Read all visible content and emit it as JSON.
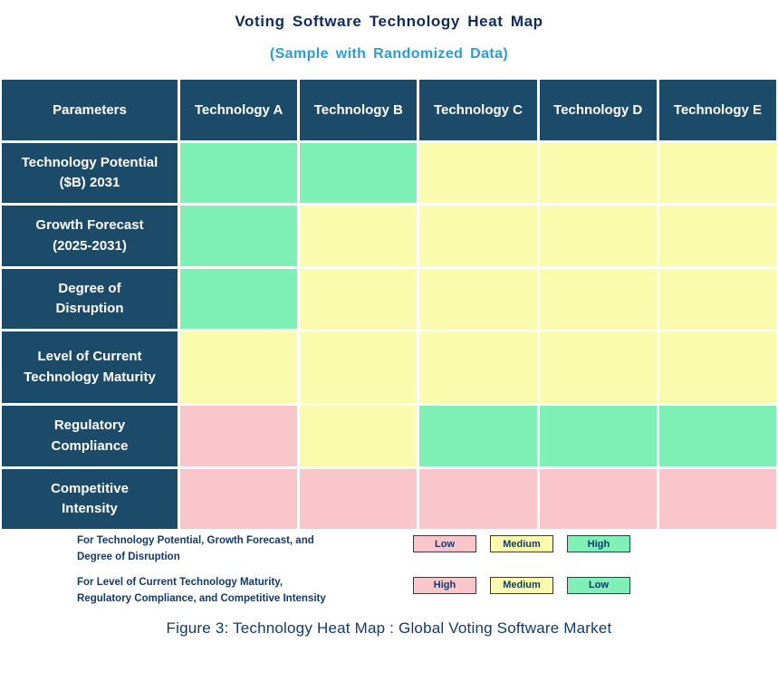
{
  "title": "Voting Software Technology Heat Map",
  "subtitle": "(Sample with Randomized Data)",
  "colors": {
    "header_bg": "#1C4A69",
    "swatches": {
      "green": "#7FF0B6",
      "yellow": "#FBFBAE",
      "pink": "#F9C6CC"
    },
    "subtitle_accent": "#2B9CD8",
    "navy_text": "#123A6B"
  },
  "chart_data": {
    "type": "heatmap",
    "columns": [
      "Parameters",
      "Technology A",
      "Technology B",
      "Technology C",
      "Technology D",
      "Technology E"
    ],
    "rows": [
      {
        "label": "Technology Potential\n($B) 2031",
        "cells": [
          "green",
          "green",
          "yellow",
          "yellow",
          "yellow"
        ]
      },
      {
        "label": "Growth Forecast\n(2025-2031)",
        "cells": [
          "green",
          "yellow",
          "yellow",
          "yellow",
          "yellow"
        ]
      },
      {
        "label": "Degree of\nDisruption",
        "cells": [
          "green",
          "yellow",
          "yellow",
          "yellow",
          "yellow"
        ]
      },
      {
        "label": "Level of Current\nTechnology Maturity",
        "cells": [
          "yellow",
          "yellow",
          "yellow",
          "yellow",
          "yellow"
        ]
      },
      {
        "label": "Regulatory\nCompliance",
        "cells": [
          "pink",
          "yellow",
          "green",
          "green",
          "green"
        ]
      },
      {
        "label": "Competitive\nIntensity",
        "cells": [
          "pink",
          "pink",
          "pink",
          "pink",
          "pink"
        ]
      }
    ],
    "legend_note": "Color meaning is reversed between the two parameter groups"
  },
  "legend": {
    "rows": [
      {
        "text": "For Technology Potential, Growth Forecast, and\nDegree of Disruption",
        "items": [
          {
            "label": "Low",
            "color": "pink"
          },
          {
            "label": "Medium",
            "color": "yellow"
          },
          {
            "label": "High",
            "color": "green"
          }
        ]
      },
      {
        "text": "For Level of Current Technology Maturity,\nRegulatory Compliance, and Competitive Intensity",
        "items": [
          {
            "label": "High",
            "color": "pink"
          },
          {
            "label": "Medium",
            "color": "yellow"
          },
          {
            "label": "Low",
            "color": "green"
          }
        ]
      }
    ]
  },
  "caption": "Figure 3: Technology Heat Map : Global Voting Software Market"
}
